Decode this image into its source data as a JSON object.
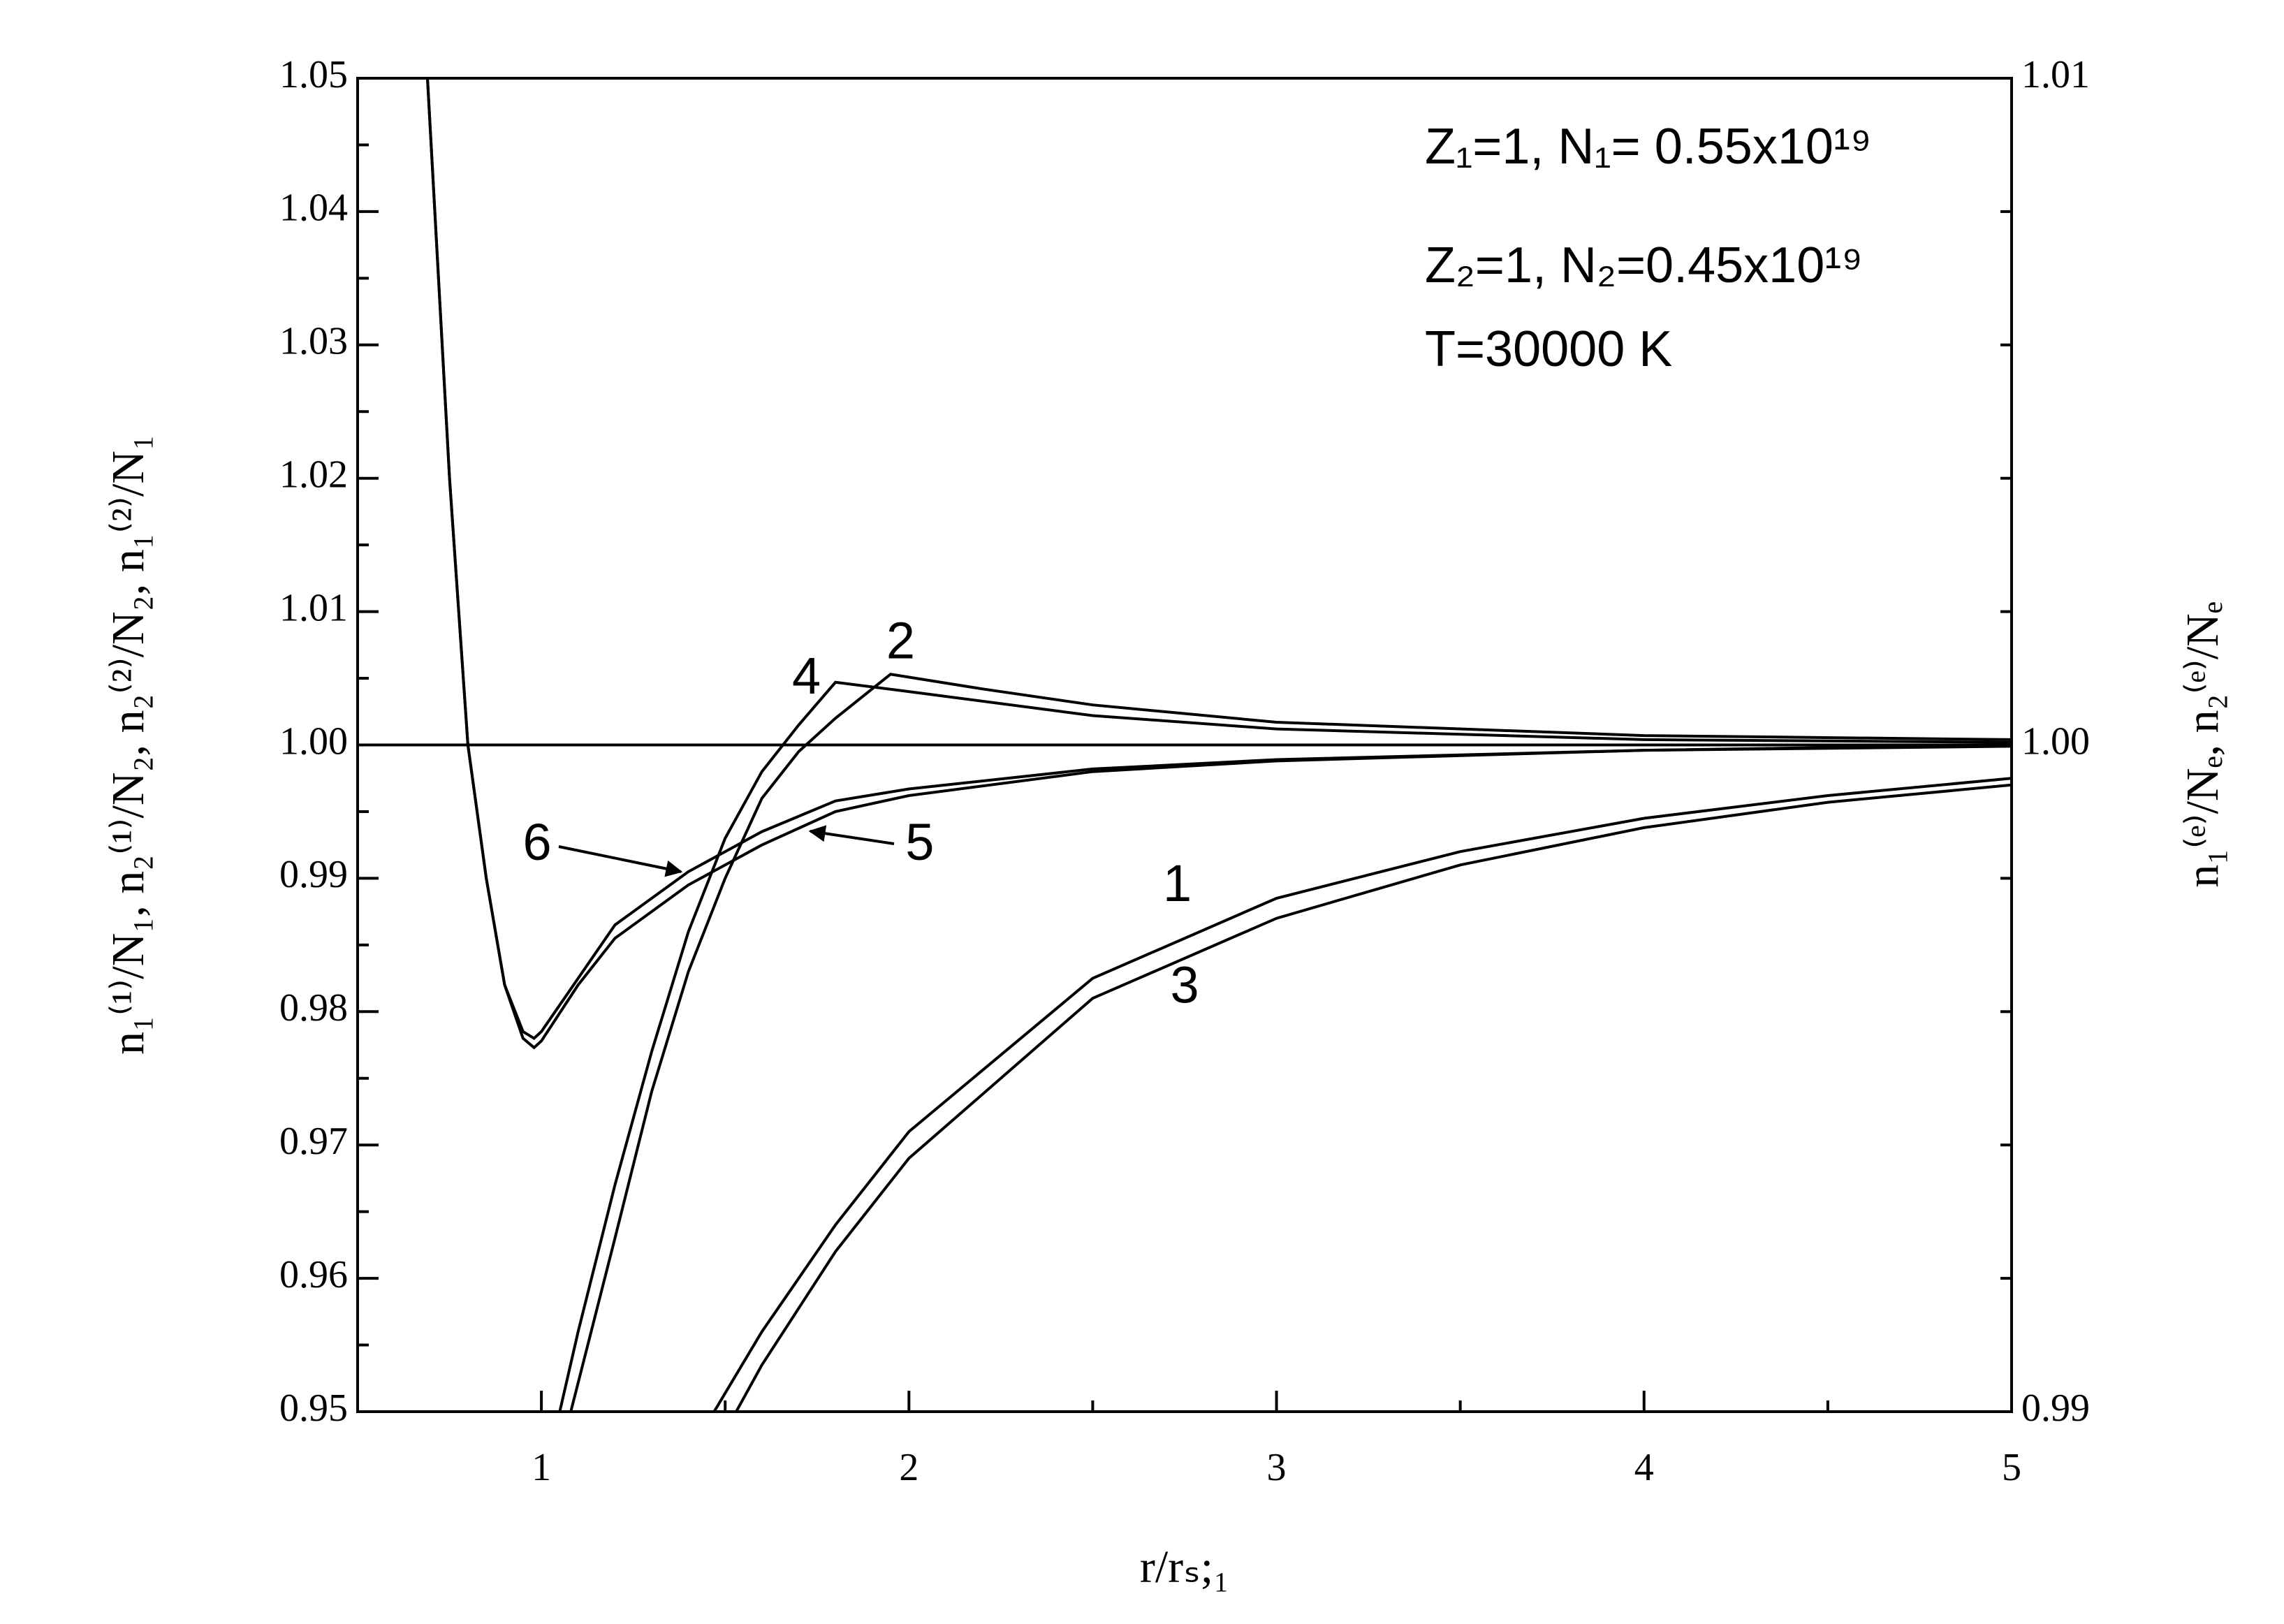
{
  "chart_data": {
    "type": "line",
    "x_label": "r/rₛ;₁",
    "y_label": "n₁⁽¹⁾/N₁, n₂⁽¹⁾/N₂, n₂⁽²⁾/N₂, n₁⁽²⁾/N₁",
    "y2_label": "n₁⁽ᵉ⁾/Nₑ, n₂⁽ᵉ⁾/Nₑ",
    "annotations": [
      "Z₁=1, N₁= 0.55x10¹⁹",
      "Z₂=1, N₂=0.45x10¹⁹",
      "T=30000 K"
    ],
    "xlim": [
      0.5,
      5
    ],
    "xticks": [
      1,
      2,
      3,
      4,
      5
    ],
    "ylim": [
      0.95,
      1.05
    ],
    "yticks": [
      0.95,
      0.96,
      0.97,
      0.98,
      0.99,
      {
        "value": 1.0,
        "label": "1.00"
      },
      1.01,
      1.02,
      1.03,
      1.04,
      1.05
    ],
    "y2lim": [
      0.99,
      1.01
    ],
    "y2ticks": [
      0.99,
      {
        "value": 1.0,
        "label": "1.00"
      },
      1.01
    ],
    "color": "#000000",
    "series": [
      {
        "name": "1",
        "x": [
          1.47,
          1.6,
          1.8,
          2,
          2.5,
          3,
          3.5,
          4,
          4.5,
          5
        ],
        "values": [
          0.95,
          0.956,
          0.964,
          0.971,
          0.9825,
          0.9885,
          0.992,
          0.9945,
          0.9962,
          0.9975
        ]
      },
      {
        "name": "2",
        "x": [
          1.08,
          1.2,
          1.3,
          1.4,
          1.5,
          1.6,
          1.7,
          1.8,
          1.95,
          2.2,
          2.5,
          3,
          4,
          5
        ],
        "values": [
          0.95,
          0.963,
          0.974,
          0.983,
          0.99,
          0.996,
          0.9995,
          1.002,
          1.0053,
          1.0042,
          1.003,
          1.0017,
          1.0007,
          1.0004
        ]
      },
      {
        "name": "3",
        "x": [
          1.53,
          1.6,
          1.8,
          2,
          2.5,
          3,
          3.5,
          4,
          4.5,
          5
        ],
        "values": [
          0.95,
          0.9535,
          0.962,
          0.969,
          0.981,
          0.987,
          0.991,
          0.9938,
          0.9957,
          0.997
        ]
      },
      {
        "name": "4",
        "x": [
          1.05,
          1.1,
          1.2,
          1.3,
          1.4,
          1.5,
          1.6,
          1.7,
          1.8,
          2,
          2.5,
          3,
          4,
          5
        ],
        "values": [
          0.95,
          0.956,
          0.967,
          0.977,
          0.986,
          0.993,
          0.998,
          1.0015,
          1.0047,
          1.004,
          1.0022,
          1.0012,
          1.0004,
          1.0002
        ]
      },
      {
        "name": "5",
        "x": [
          0.69,
          0.75,
          0.8,
          0.85,
          0.9,
          0.95,
          0.98,
          1.0,
          1.1,
          1.2,
          1.4,
          1.6,
          1.8,
          2.0,
          2.5,
          3,
          4,
          5
        ],
        "values": [
          1.05,
          1.02,
          1.0,
          0.99,
          0.982,
          0.978,
          0.9773,
          0.9778,
          0.982,
          0.9855,
          0.9895,
          0.9925,
          0.995,
          0.9962,
          0.998,
          0.9988,
          0.9996,
          0.9999
        ]
      },
      {
        "name": "6",
        "x": [
          0.69,
          0.75,
          0.8,
          0.85,
          0.9,
          0.95,
          0.98,
          1.0,
          1.2,
          1.4,
          1.6,
          1.8,
          2.0,
          2.5,
          3,
          4,
          5
        ],
        "values": [
          1.05,
          1.02,
          1.0,
          0.99,
          0.982,
          0.9785,
          0.978,
          0.9785,
          0.9865,
          0.9905,
          0.9935,
          0.9958,
          0.9967,
          0.9982,
          0.9989,
          0.9996,
          1.0
        ]
      },
      {
        "x": [
          0.5,
          5
        ],
        "values": [
          1.0,
          1.0
        ]
      }
    ]
  }
}
